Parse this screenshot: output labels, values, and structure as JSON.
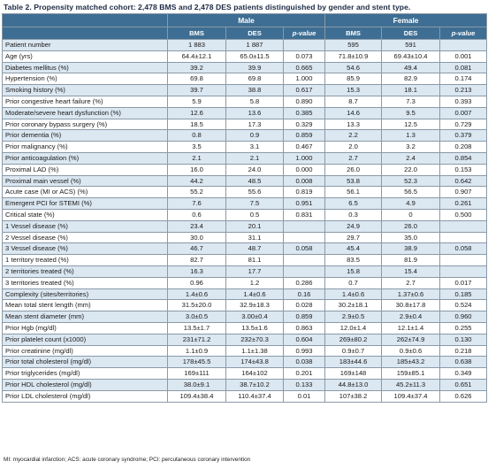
{
  "caption": "Table 2. Propensity matched cohort: 2,478 BMS and 2,478 DES patients distinguished by gender and stent type.",
  "headers": {
    "group_male": "Male",
    "group_female": "Female",
    "col_bms": "BMS",
    "col_des": "DES",
    "col_p": "p-value"
  },
  "rows": [
    {
      "label": "Patient number",
      "m_bms": "1 883",
      "m_des": "1 887",
      "m_p": "",
      "f_bms": "595",
      "f_des": "591",
      "f_p": ""
    },
    {
      "label": "Age (yrs)",
      "m_bms": "64.4±12.1",
      "m_des": "65.0±11.5",
      "m_p": "0.073",
      "f_bms": "71.8±10.9",
      "f_des": "69.43±10.4",
      "f_p": "0.001"
    },
    {
      "label": "Diabetes mellitus (%)",
      "m_bms": "39.2",
      "m_des": "39.9",
      "m_p": "0.665",
      "f_bms": "54.6",
      "f_des": "49.4",
      "f_p": "0.081"
    },
    {
      "label": "Hypertension (%)",
      "m_bms": "69.8",
      "m_des": "69.8",
      "m_p": "1.000",
      "f_bms": "85.9",
      "f_des": "82.9",
      "f_p": "0.174"
    },
    {
      "label": "Smoking history (%)",
      "m_bms": "39.7",
      "m_des": "38.8",
      "m_p": "0.617",
      "f_bms": "15.3",
      "f_des": "18.1",
      "f_p": "0.213"
    },
    {
      "label": "Prior congestive heart failure (%)",
      "m_bms": "5.9",
      "m_des": "5.8",
      "m_p": "0.890",
      "f_bms": "8.7",
      "f_des": "7.3",
      "f_p": "0.393"
    },
    {
      "label": "Moderate/severe heart dysfunction (%)",
      "m_bms": "12.6",
      "m_des": "13.6",
      "m_p": "0.385",
      "f_bms": "14.6",
      "f_des": "9.5",
      "f_p": "0.007"
    },
    {
      "label": "Prior coronary bypass surgery (%)",
      "m_bms": "18.5",
      "m_des": "17.3",
      "m_p": "0.329",
      "f_bms": "13.3",
      "f_des": "12.5",
      "f_p": "0.729"
    },
    {
      "label": "Prior dementia (%)",
      "m_bms": "0.8",
      "m_des": "0.9",
      "m_p": "0.859",
      "f_bms": "2.2",
      "f_des": "1.3",
      "f_p": "0.379"
    },
    {
      "label": "Prior malignancy (%)",
      "m_bms": "3.5",
      "m_des": "3.1",
      "m_p": "0.467",
      "f_bms": "2.0",
      "f_des": "3.2",
      "f_p": "0.208"
    },
    {
      "label": "Prior anticoagulation (%)",
      "m_bms": "2.1",
      "m_des": "2.1",
      "m_p": "1.000",
      "f_bms": "2.7",
      "f_des": "2.4",
      "f_p": "0.854"
    },
    {
      "label": "Proximal LAD (%)",
      "m_bms": "16.0",
      "m_des": "24.0",
      "m_p": "0.000",
      "f_bms": "26.0",
      "f_des": "22.0",
      "f_p": "0.153"
    },
    {
      "label": "Proximal main vessel (%)",
      "m_bms": "44.2",
      "m_des": "48.5",
      "m_p": "0.008",
      "f_bms": "53.8",
      "f_des": "52.3",
      "f_p": "0.642"
    },
    {
      "label": "Acute case (MI or ACS) (%)",
      "m_bms": "55.2",
      "m_des": "55.6",
      "m_p": "0.819",
      "f_bms": "56.1",
      "f_des": "56.5",
      "f_p": "0.907"
    },
    {
      "label": "Emergent PCI for STEMI (%)",
      "m_bms": "7.6",
      "m_des": "7.5",
      "m_p": "0.951",
      "f_bms": "6.5",
      "f_des": "4.9",
      "f_p": "0.261"
    },
    {
      "label": "Critical state (%)",
      "m_bms": "0.6",
      "m_des": "0.5",
      "m_p": "0.831",
      "f_bms": "0.3",
      "f_des": "0",
      "f_p": "0.500"
    },
    {
      "label": "1 Vessel disease (%)",
      "m_bms": "23.4",
      "m_des": "20.1",
      "m_p": "",
      "f_bms": "24.9",
      "f_des": "26.0",
      "f_p": ""
    },
    {
      "label": "2 Vessel disease (%)",
      "m_bms": "30.0",
      "m_des": "31.1",
      "m_p": "",
      "f_bms": "29.7",
      "f_des": "35.0",
      "f_p": ""
    },
    {
      "label": "3 Vessel disease (%)",
      "m_bms": "46.7",
      "m_des": "48.7",
      "m_p": "0.058",
      "f_bms": "45.4",
      "f_des": "38.9",
      "f_p": "0.058"
    },
    {
      "label": "1 territory treated (%)",
      "m_bms": "82.7",
      "m_des": "81.1",
      "m_p": "",
      "f_bms": "83.5",
      "f_des": "81.9",
      "f_p": ""
    },
    {
      "label": "2 territories treated (%)",
      "m_bms": "16.3",
      "m_des": "17.7",
      "m_p": "",
      "f_bms": "15.8",
      "f_des": "15.4",
      "f_p": ""
    },
    {
      "label": "3 territories treated (%)",
      "m_bms": "0.96",
      "m_des": "1.2",
      "m_p": "0.286",
      "f_bms": "0.7",
      "f_des": "2.7",
      "f_p": "0.017"
    },
    {
      "label": "Complexity (sites/territories)",
      "m_bms": "1.4±0.6",
      "m_des": "1.4±0.6",
      "m_p": "0.16",
      "f_bms": "1.4±0.6",
      "f_des": "1.37±0.6",
      "f_p": "0.185"
    },
    {
      "label": "Mean total stent length (mm)",
      "m_bms": "31.5±20.0",
      "m_des": "32.9±18.3",
      "m_p": "0.028",
      "f_bms": "30.2±18.1",
      "f_des": "30.8±17.8",
      "f_p": "0.524"
    },
    {
      "label": "Mean stent diameter (mm)",
      "m_bms": "3.0±0.5",
      "m_des": "3.00±0.4",
      "m_p": "0.859",
      "f_bms": "2.9±0.5",
      "f_des": "2.9±0.4",
      "f_p": "0.960"
    },
    {
      "label": "Prior Hgb (mg/dl)",
      "m_bms": "13.5±1.7",
      "m_des": "13.5±1.6",
      "m_p": "0.863",
      "f_bms": "12.0±1.4",
      "f_des": "12.1±1.4",
      "f_p": "0.255"
    },
    {
      "label": "Prior platelet count (x1000)",
      "m_bms": "231±71.2",
      "m_des": "232±70.3",
      "m_p": "0.604",
      "f_bms": "269±80.2",
      "f_des": "262±74.9",
      "f_p": "0.130"
    },
    {
      "label": "Prior creatinine (mg/dl)",
      "m_bms": "1.1±0.9",
      "m_des": "1.1±1.38",
      "m_p": "0.993",
      "f_bms": "0.9±0.7",
      "f_des": "0.9±0.6",
      "f_p": "0.218"
    },
    {
      "label": "Prior total cholesterol (mg/dl)",
      "m_bms": "178±45.5",
      "m_des": "174±43.8",
      "m_p": "0.038",
      "f_bms": "183±44.6",
      "f_des": "185±43.2",
      "f_p": "0.638"
    },
    {
      "label": "Prior triglycerides (mg/dl)",
      "m_bms": "169±111",
      "m_des": "164±102",
      "m_p": "0.201",
      "f_bms": "169±148",
      "f_des": "159±85.1",
      "f_p": "0.349"
    },
    {
      "label": "Prior HDL cholesterol (mg/dl)",
      "m_bms": "38.0±9.1",
      "m_des": "38.7±10.2",
      "m_p": "0.133",
      "f_bms": "44.8±13.0",
      "f_des": "45.2±11.3",
      "f_p": "0.651"
    },
    {
      "label": "Prior LDL cholesterol (mg/dl)",
      "m_bms": "109.4±38.4",
      "m_des": "110.4±37.4",
      "m_p": "0.01",
      "f_bms": "107±38.2",
      "f_des": "109.4±37.4",
      "f_p": "0.626"
    }
  ],
  "footnote": "MI: myocardial infarction; ACS: acute coronary syndrome; PCI: percutaneous coronary intervention"
}
